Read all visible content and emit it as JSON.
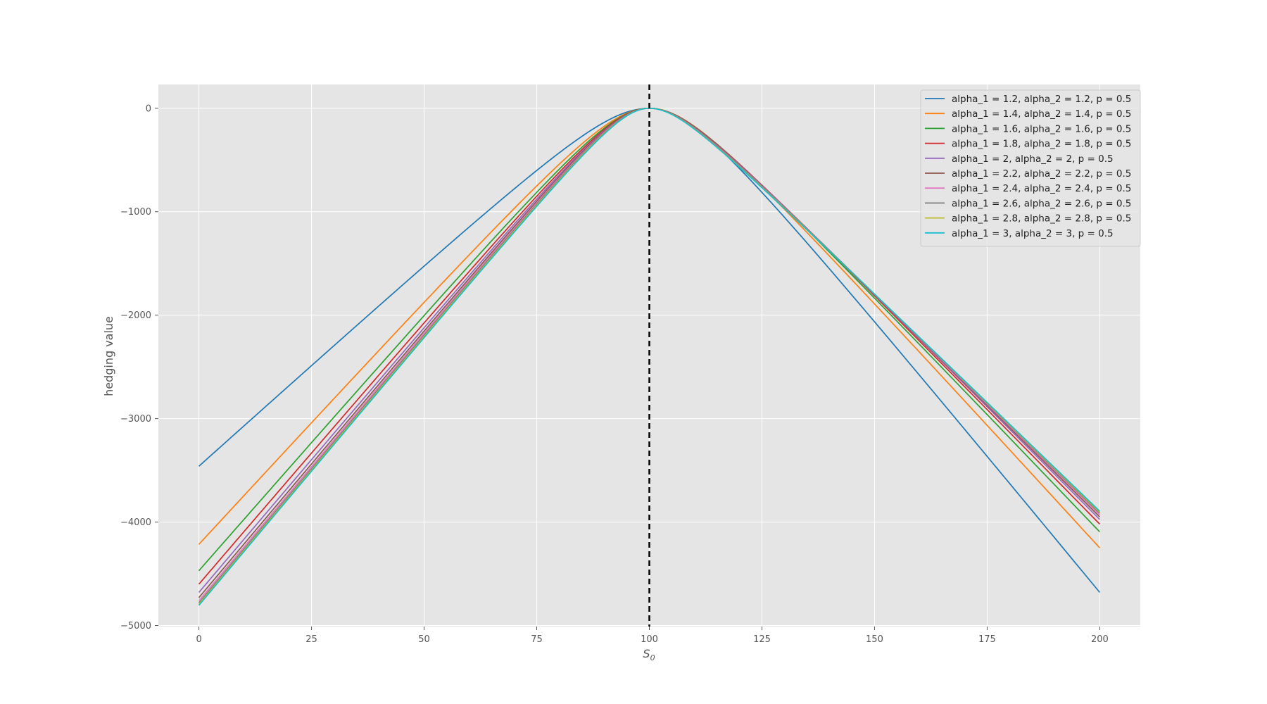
{
  "chart_data": {
    "type": "line",
    "title": "",
    "xlabel": "S",
    "xlabel_sub": "0",
    "ylabel": "hedging value",
    "xlim": [
      -9,
      209
    ],
    "ylim": [
      -5010,
      230
    ],
    "xticks": [
      0,
      25,
      50,
      75,
      100,
      125,
      150,
      175,
      200
    ],
    "xtick_labels": [
      "0",
      "25",
      "50",
      "75",
      "100",
      "125",
      "150",
      "175",
      "200"
    ],
    "yticks": [
      0,
      -1000,
      -2000,
      -3000,
      -4000,
      -5000
    ],
    "ytick_labels": [
      "0",
      "−1000",
      "−2000",
      "−3000",
      "−4000",
      "−5000"
    ],
    "grid": true,
    "legend_position": "top-right",
    "vline": {
      "x": 100,
      "style": "dashed",
      "color": "#000000"
    },
    "background": "#e5e5e5",
    "series": [
      {
        "name": "alpha_1 = 1.2, alpha_2 = 1.2, p = 0.5",
        "color": "#1f77b4",
        "alpha": 1.2,
        "left_end": -3460,
        "right_end": -4680
      },
      {
        "name": "alpha_1 = 1.4, alpha_2 = 1.4, p = 0.5",
        "color": "#ff7f0e",
        "alpha": 1.4,
        "left_end": -4215,
        "right_end": -4250
      },
      {
        "name": "alpha_1 = 1.6, alpha_2 = 1.6, p = 0.5",
        "color": "#2ca02c",
        "alpha": 1.6,
        "left_end": -4470,
        "right_end": -4095
      },
      {
        "name": "alpha_1 = 1.8, alpha_2 = 1.8, p = 0.5",
        "color": "#d62728",
        "alpha": 1.8,
        "left_end": -4600,
        "right_end": -4020
      },
      {
        "name": "alpha_1 = 2, alpha_2 = 2, p = 0.5",
        "color": "#9467bd",
        "alpha": 2.0,
        "left_end": -4680,
        "right_end": -3975
      },
      {
        "name": "alpha_1 = 2.2, alpha_2 = 2.2, p = 0.5",
        "color": "#8c564b",
        "alpha": 2.2,
        "left_end": -4730,
        "right_end": -3950
      },
      {
        "name": "alpha_1 = 2.4, alpha_2 = 2.4, p = 0.5",
        "color": "#e377c2",
        "alpha": 2.4,
        "left_end": -4760,
        "right_end": -3930
      },
      {
        "name": "alpha_1 = 2.6, alpha_2 = 2.6, p = 0.5",
        "color": "#7f7f7f",
        "alpha": 2.6,
        "left_end": -4780,
        "right_end": -3915
      },
      {
        "name": "alpha_1 = 2.8, alpha_2 = 2.8, p = 0.5",
        "color": "#bcbd22",
        "alpha": 2.8,
        "left_end": -4795,
        "right_end": -3905
      },
      {
        "name": "alpha_1 = 3, alpha_2 = 3, p = 0.5",
        "color": "#17becf",
        "alpha": 3.0,
        "left_end": -4805,
        "right_end": -3895
      }
    ]
  }
}
